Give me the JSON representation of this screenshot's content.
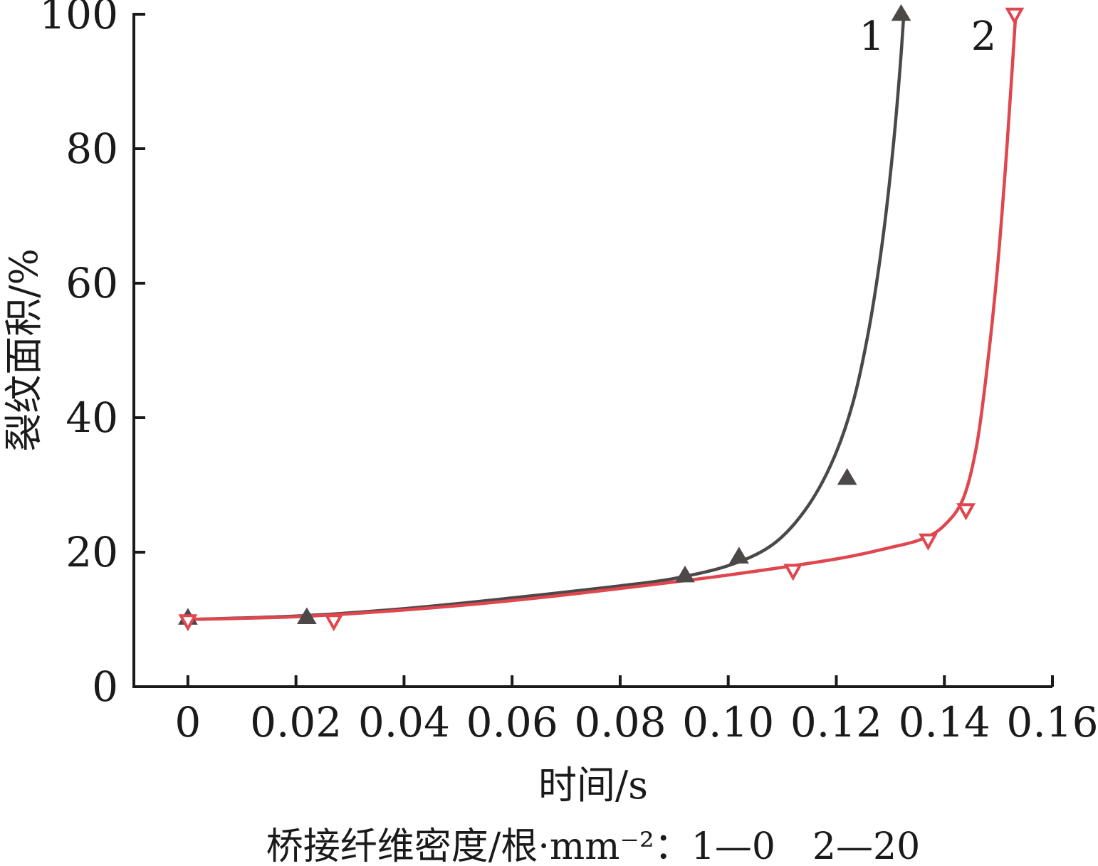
{
  "chart_data": {
    "type": "scatter",
    "xlabel": "时间/s",
    "ylabel": "裂纹面积/%",
    "xlim": [
      -0.01,
      0.16
    ],
    "ylim": [
      0,
      100
    ],
    "x_ticks": [
      0,
      0.02,
      0.04,
      0.06,
      0.08,
      0.1,
      0.12,
      0.14,
      0.16
    ],
    "x_tick_labels": [
      "0",
      "0.02",
      "0.04",
      "0.06",
      "0.08",
      "0.10",
      "0.12",
      "0.14",
      "0.16"
    ],
    "y_ticks": [
      0,
      20,
      40,
      60,
      80,
      100
    ],
    "y_tick_labels": [
      "0",
      "20",
      "40",
      "60",
      "80",
      "100"
    ],
    "note": "桥接纤维密度/根·mm⁻²：1—0　2—20",
    "series": [
      {
        "name": "1",
        "marker": "triangle-up-filled",
        "color": "#4d4848",
        "points": [
          {
            "x": 0.0,
            "y": 10.2
          },
          {
            "x": 0.022,
            "y": 10.3
          },
          {
            "x": 0.092,
            "y": 16.5
          },
          {
            "x": 0.102,
            "y": 19.3
          },
          {
            "x": 0.122,
            "y": 31.0
          },
          {
            "x": 0.132,
            "y": 100.0
          }
        ],
        "curve": [
          {
            "x": 0.0,
            "y": 10.0
          },
          {
            "x": 0.02,
            "y": 10.5
          },
          {
            "x": 0.04,
            "y": 11.6
          },
          {
            "x": 0.06,
            "y": 13.2
          },
          {
            "x": 0.08,
            "y": 15.0
          },
          {
            "x": 0.09,
            "y": 16.1
          },
          {
            "x": 0.1,
            "y": 18.0
          },
          {
            "x": 0.108,
            "y": 21.0
          },
          {
            "x": 0.114,
            "y": 26.0
          },
          {
            "x": 0.119,
            "y": 33.0
          },
          {
            "x": 0.123,
            "y": 42.0
          },
          {
            "x": 0.126,
            "y": 53.0
          },
          {
            "x": 0.1285,
            "y": 66.0
          },
          {
            "x": 0.1305,
            "y": 80.0
          },
          {
            "x": 0.1318,
            "y": 92.0
          },
          {
            "x": 0.1325,
            "y": 100.0
          }
        ]
      },
      {
        "name": "2",
        "marker": "triangle-down-open",
        "color": "#e0464e",
        "points": [
          {
            "x": 0.0,
            "y": 9.8
          },
          {
            "x": 0.027,
            "y": 9.8
          },
          {
            "x": 0.112,
            "y": 17.3
          },
          {
            "x": 0.137,
            "y": 21.8
          },
          {
            "x": 0.144,
            "y": 26.3
          },
          {
            "x": 0.153,
            "y": 100.0
          }
        ],
        "curve": [
          {
            "x": 0.0,
            "y": 10.0
          },
          {
            "x": 0.02,
            "y": 10.4
          },
          {
            "x": 0.04,
            "y": 11.4
          },
          {
            "x": 0.06,
            "y": 12.8
          },
          {
            "x": 0.08,
            "y": 14.6
          },
          {
            "x": 0.1,
            "y": 16.6
          },
          {
            "x": 0.12,
            "y": 19.0
          },
          {
            "x": 0.13,
            "y": 20.7
          },
          {
            "x": 0.136,
            "y": 22.0
          },
          {
            "x": 0.14,
            "y": 24.0
          },
          {
            "x": 0.1435,
            "y": 28.0
          },
          {
            "x": 0.146,
            "y": 36.0
          },
          {
            "x": 0.148,
            "y": 48.0
          },
          {
            "x": 0.1498,
            "y": 62.0
          },
          {
            "x": 0.1512,
            "y": 76.0
          },
          {
            "x": 0.1524,
            "y": 90.0
          },
          {
            "x": 0.1532,
            "y": 100.0
          }
        ]
      }
    ]
  }
}
